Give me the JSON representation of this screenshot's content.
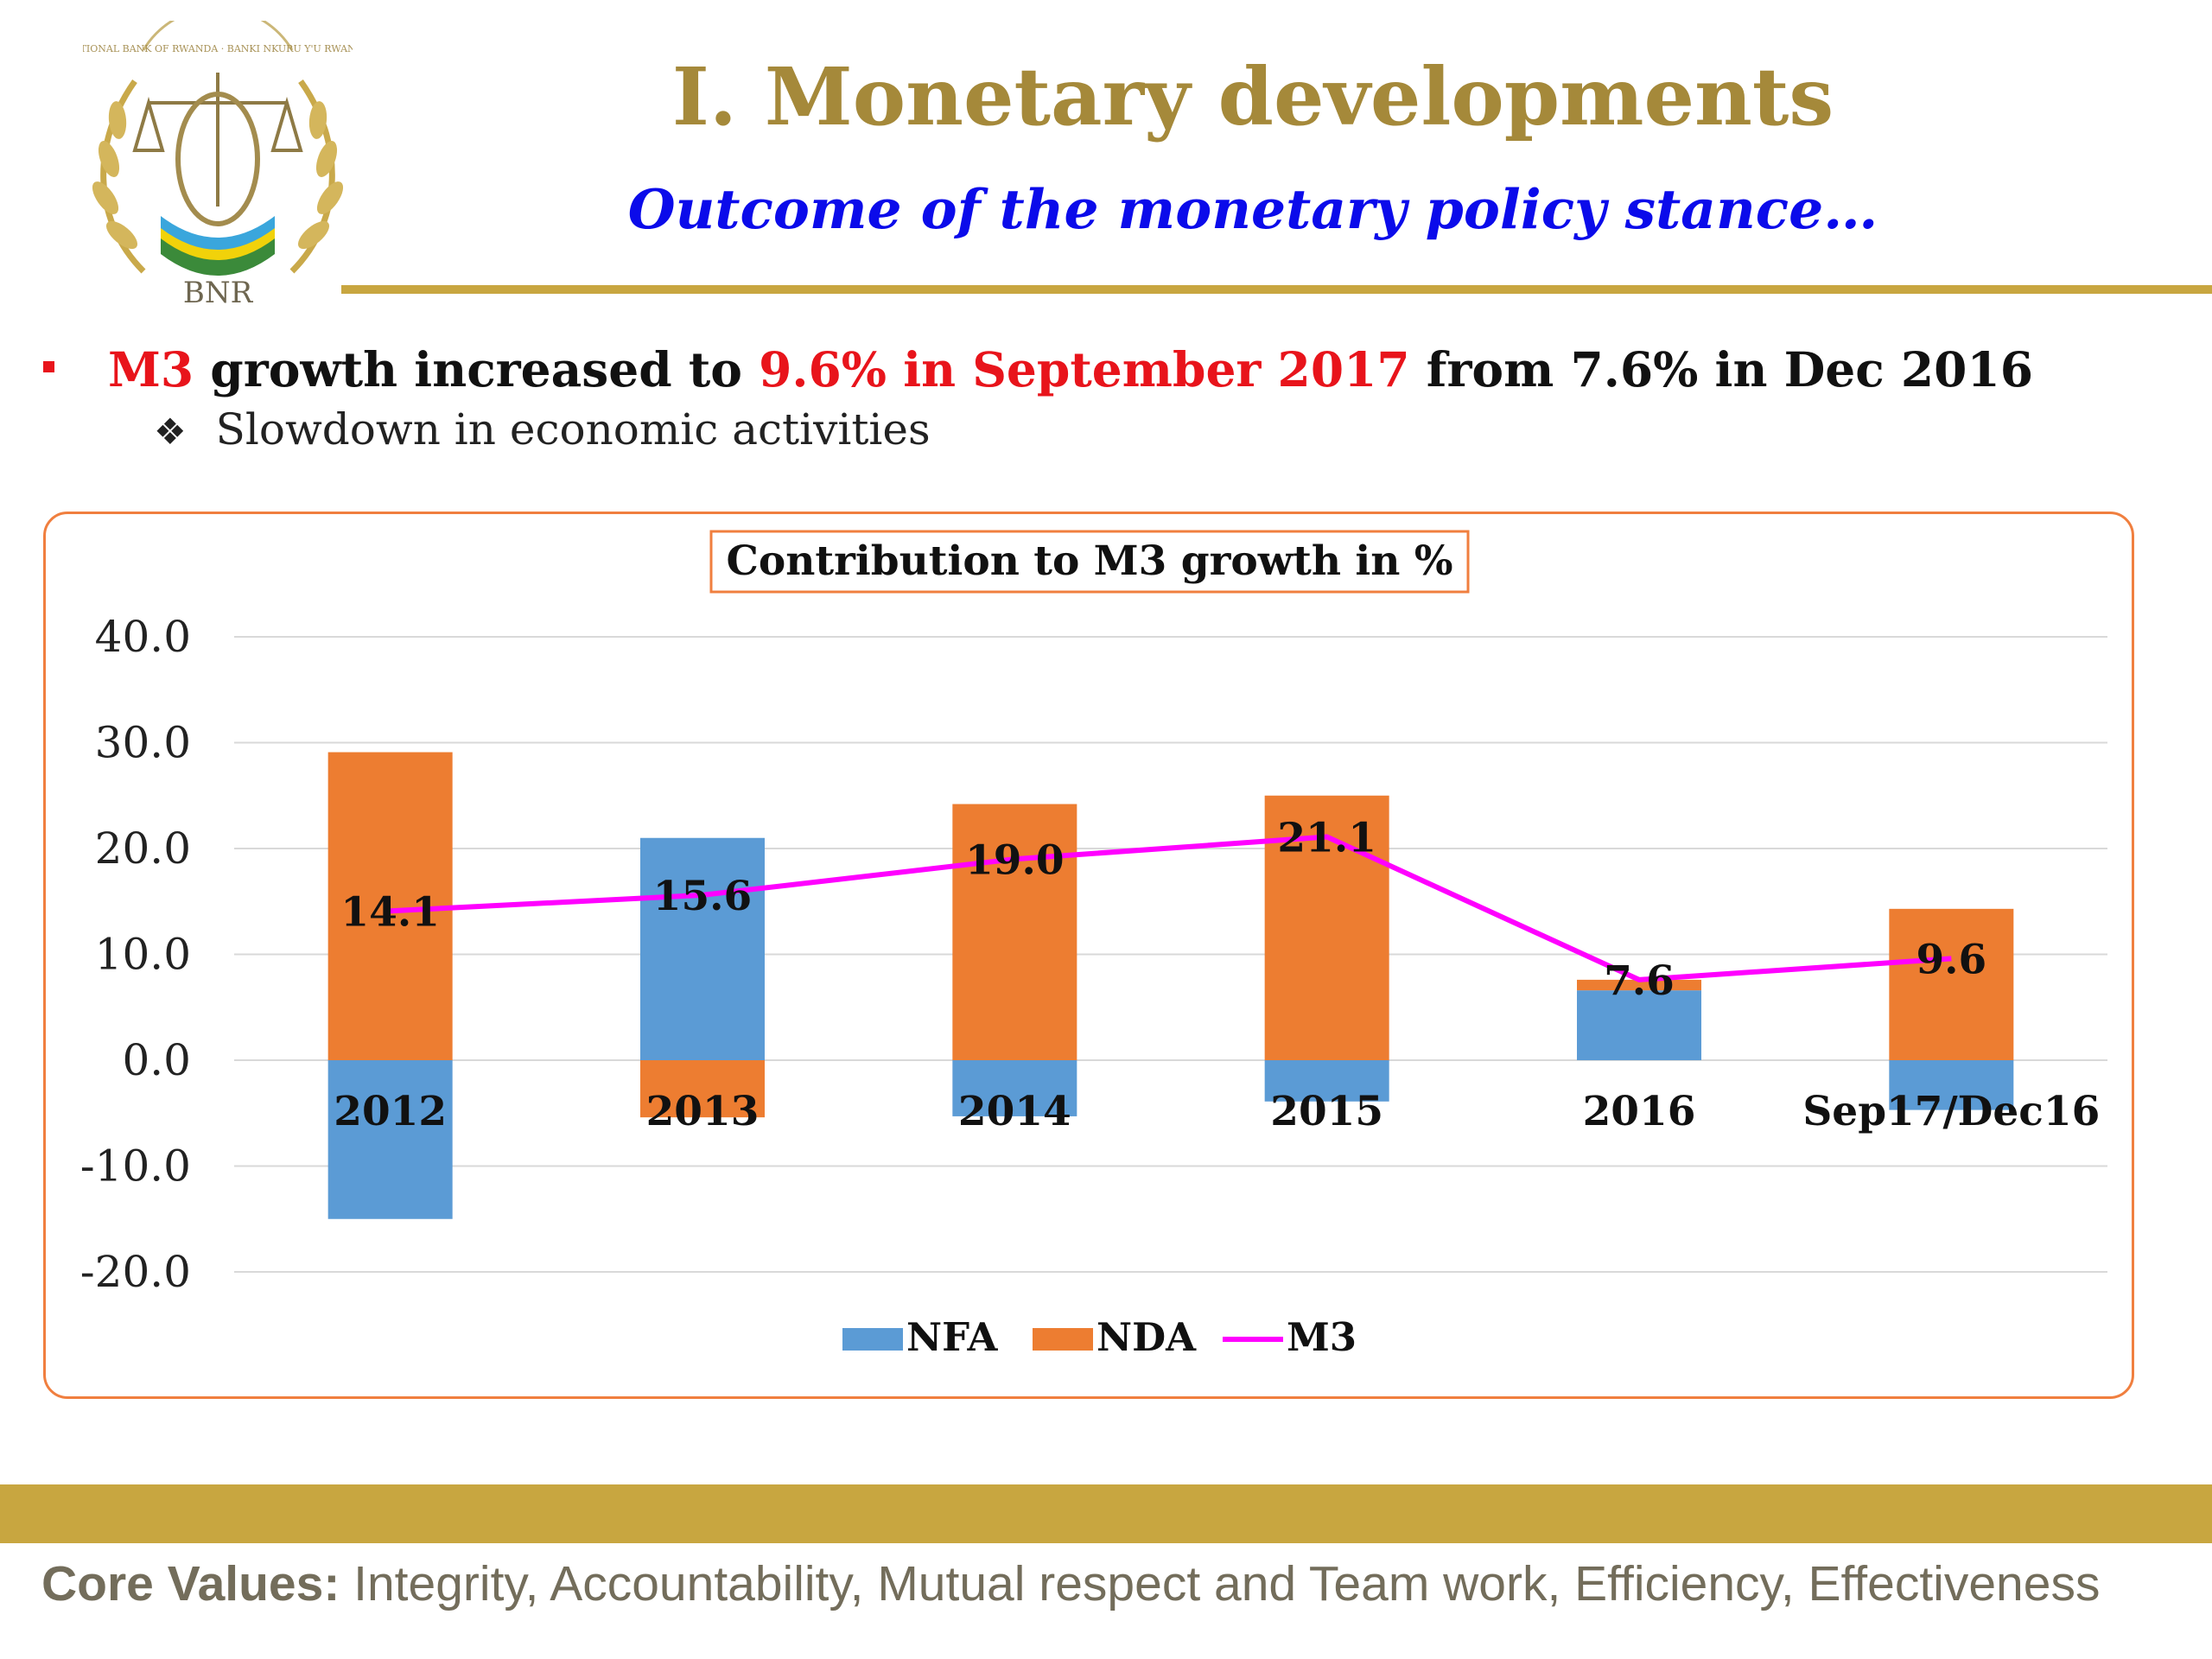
{
  "header": {
    "title": "I. Monetary developments",
    "subtitle": "Outcome of the monetary policy stance…",
    "logo_text": "BNR",
    "logo_ring_text": "NATIONAL BANK OF RWANDA · BANKI NKURU Y'U RWANDA"
  },
  "bullets": {
    "main": {
      "part1": "M3",
      "part2": " growth increased to ",
      "part3": "9.6% in September 2017",
      "part4": " from 7.6% in Dec 2016"
    },
    "sub": {
      "symbol": "❖",
      "text": "Slowdown in economic activities"
    }
  },
  "chart_data": {
    "type": "bar",
    "title": "Contribution to M3 growth in %",
    "categories": [
      "2012",
      "2013",
      "2014",
      "2015",
      "2016",
      "Sep17/Dec16"
    ],
    "series": [
      {
        "name": "NFA",
        "type": "bar",
        "stacked": true,
        "color": "#5b9bd5",
        "values": [
          -15.0,
          21.0,
          -5.3,
          -3.9,
          6.6,
          -4.7
        ]
      },
      {
        "name": "NDA",
        "type": "bar",
        "stacked": true,
        "color": "#ed7d31",
        "values": [
          29.1,
          -5.4,
          24.2,
          25.0,
          1.0,
          14.3
        ]
      },
      {
        "name": "M3",
        "type": "line",
        "color": "#ff00ff",
        "values": [
          14.1,
          15.6,
          19.0,
          21.1,
          7.6,
          9.6
        ],
        "labels": [
          "14.1",
          "15.6",
          "19.0",
          "21.1",
          "7.6",
          "9.6"
        ]
      }
    ],
    "ylim": [
      -20,
      40
    ],
    "yticks": [
      "40.0",
      "30.0",
      "20.0",
      "10.0",
      "0.0",
      "-10.0",
      "-20.0"
    ],
    "ytick_values": [
      40,
      30,
      20,
      10,
      0,
      -10,
      -20
    ],
    "grid": true,
    "legend": "bottom"
  },
  "footer": {
    "label": "Core Values:",
    "text": " Integrity, Accountability, Mutual respect and Team work, Efficiency, Effectiveness"
  }
}
